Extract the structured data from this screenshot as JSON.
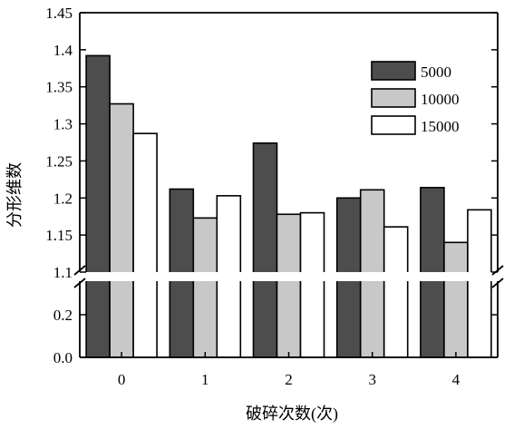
{
  "colors": {
    "series_5000": "#4d4d4d",
    "series_10000": "#c8c8c8",
    "series_15000": "#ffffff",
    "axis": "#000000",
    "background": "#ffffff"
  },
  "chart_data": {
    "type": "bar",
    "title": "",
    "xlabel": "破碎次数(次)",
    "ylabel": "分形维数",
    "categories": [
      "0",
      "1",
      "2",
      "3",
      "4"
    ],
    "series": [
      {
        "name": "5000",
        "values": [
          1.392,
          1.212,
          1.274,
          1.2,
          1.214
        ]
      },
      {
        "name": "10000",
        "values": [
          1.327,
          1.173,
          1.178,
          1.211,
          1.14
        ]
      },
      {
        "name": "15000",
        "values": [
          1.287,
          1.203,
          1.18,
          1.161,
          1.184
        ]
      }
    ],
    "ylim": [
      0,
      1.45
    ],
    "axis_break": {
      "from": 0.2,
      "to": 1.1
    },
    "y_ticks_lower": [
      "0.0",
      "0.2"
    ],
    "y_ticks_upper": [
      "1.1",
      "1.15",
      "1.2",
      "1.25",
      "1.3",
      "1.35",
      "1.4",
      "1.45"
    ],
    "legend_position": "top-right",
    "grid": false
  }
}
